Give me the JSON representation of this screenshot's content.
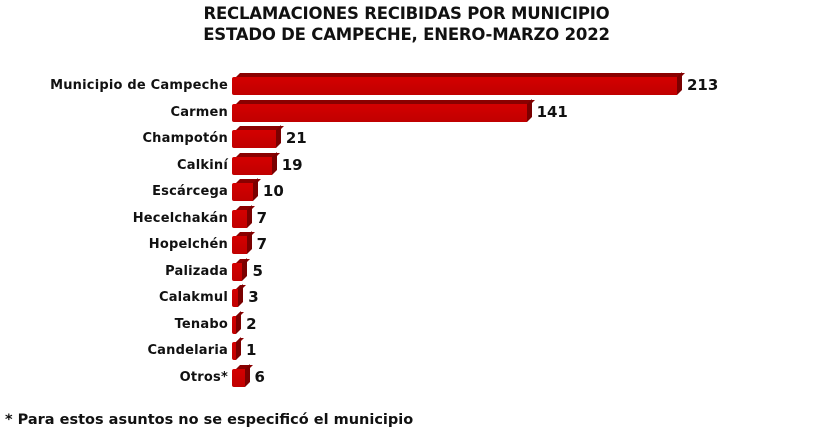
{
  "title": {
    "line1": "RECLAMACIONES RECIBIDAS POR MUNICIPIO",
    "line2": "ESTADO DE CAMPECHE, ENERO-MARZO 2022"
  },
  "footnote": "* Para estos asuntos no se especificó el municipio",
  "colors": {
    "bar": "#c00000",
    "bar_dark": "#7a0000",
    "text": "#111111"
  },
  "chart_data": {
    "type": "bar",
    "orientation": "horizontal",
    "title": "RECLAMACIONES RECIBIDAS POR MUNICIPIO ESTADO DE CAMPECHE, ENERO-MARZO 2022",
    "xlabel": "",
    "ylabel": "",
    "categories": [
      "Municipio de Campeche",
      "Carmen",
      "Champotón",
      "Calkiní",
      "Escárcega",
      "Hecelchakán",
      "Hopelchén",
      "Palizada",
      "Calakmul",
      "Tenabo",
      "Candelaria",
      "Otros*"
    ],
    "values": [
      213,
      141,
      21,
      19,
      10,
      7,
      7,
      5,
      3,
      2,
      1,
      6
    ],
    "value_labels": [
      "213",
      "141",
      "21",
      "19",
      "10",
      "7",
      "7",
      "5",
      "3",
      "2",
      "1",
      "6"
    ],
    "grid": false,
    "legend": null,
    "style": "3d",
    "annotations": [
      "* Para estos asuntos no se especificó el municipio"
    ]
  }
}
